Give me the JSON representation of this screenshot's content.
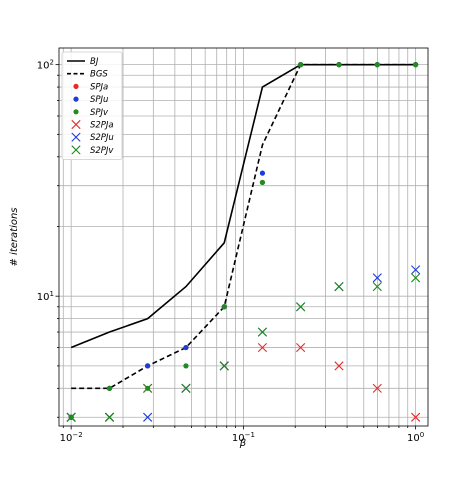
{
  "chart_data": {
    "type": "line",
    "title": "",
    "xlabel": "β",
    "ylabel": "# iterations",
    "xscale": "log",
    "yscale": "log",
    "xlim": [
      0.0085,
      1.18
    ],
    "ylim": [
      2.75,
      118
    ],
    "grid": "major and minor on both axes",
    "legend_placement": "top-left",
    "x_tick_labels": [
      {
        "value": 0.01,
        "base": "10",
        "exp": "−2"
      },
      {
        "value": 0.1,
        "base": "10",
        "exp": "−1"
      },
      {
        "value": 1,
        "base": "10",
        "exp": "0"
      }
    ],
    "y_tick_labels": [
      {
        "value": 10,
        "base": "10",
        "exp": "1"
      },
      {
        "value": 100,
        "base": "10",
        "exp": "2"
      }
    ],
    "series": [
      {
        "name": "BJ",
        "kind": "line",
        "style": "solid",
        "color": "#000000",
        "points": [
          [
            0.01,
            6
          ],
          [
            0.0167,
            7
          ],
          [
            0.0278,
            8
          ],
          [
            0.0464,
            11
          ],
          [
            0.0774,
            17
          ],
          [
            0.129,
            80
          ],
          [
            0.215,
            100
          ],
          [
            0.359,
            100
          ],
          [
            0.599,
            100
          ],
          [
            1.0,
            100
          ]
        ]
      },
      {
        "name": "BGS",
        "kind": "line",
        "style": "dashed",
        "color": "#000000",
        "points": [
          [
            0.01,
            4
          ],
          [
            0.0167,
            4
          ],
          [
            0.0278,
            5
          ],
          [
            0.0464,
            6
          ],
          [
            0.0774,
            9
          ],
          [
            0.129,
            45
          ],
          [
            0.215,
            100
          ],
          [
            0.359,
            100
          ],
          [
            0.599,
            100
          ],
          [
            1.0,
            100
          ]
        ]
      },
      {
        "name": "SPJa",
        "kind": "dot",
        "color": "#e8292a",
        "points": [
          [
            0.01,
            3
          ],
          [
            0.0167,
            4
          ],
          [
            0.0278,
            5
          ],
          [
            0.0464,
            6
          ],
          [
            0.0774,
            9
          ],
          [
            0.129,
            31
          ],
          [
            0.215,
            100
          ],
          [
            0.359,
            100
          ],
          [
            0.599,
            100
          ],
          [
            1.0,
            100
          ]
        ]
      },
      {
        "name": "SPJu",
        "kind": "dot",
        "color": "#1f3bd6",
        "points": [
          [
            0.01,
            3
          ],
          [
            0.0167,
            4
          ],
          [
            0.0278,
            5
          ],
          [
            0.0464,
            6
          ],
          [
            0.0774,
            9
          ],
          [
            0.129,
            34
          ],
          [
            0.215,
            100
          ],
          [
            0.359,
            100
          ],
          [
            0.599,
            100
          ],
          [
            1.0,
            100
          ]
        ]
      },
      {
        "name": "SPJv",
        "kind": "dot",
        "color": "#1e8c1e",
        "points": [
          [
            0.01,
            3
          ],
          [
            0.0167,
            4
          ],
          [
            0.0278,
            4
          ],
          [
            0.0464,
            5
          ],
          [
            0.0774,
            9
          ],
          [
            0.129,
            31
          ],
          [
            0.215,
            100
          ],
          [
            0.359,
            100
          ],
          [
            0.599,
            100
          ],
          [
            1.0,
            100
          ]
        ]
      },
      {
        "name": "S2PJa",
        "kind": "x",
        "color": "#e8292a",
        "points": [
          [
            0.01,
            3
          ],
          [
            0.0167,
            3
          ],
          [
            0.0278,
            4
          ],
          [
            0.0464,
            4
          ],
          [
            0.0774,
            5
          ],
          [
            0.129,
            6
          ],
          [
            0.215,
            6
          ],
          [
            0.359,
            5
          ],
          [
            0.599,
            4
          ],
          [
            1.0,
            3
          ]
        ]
      },
      {
        "name": "S2PJu",
        "kind": "x",
        "color": "#1f3bd6",
        "points": [
          [
            0.01,
            3
          ],
          [
            0.0167,
            3
          ],
          [
            0.0278,
            3
          ],
          [
            0.0464,
            4
          ],
          [
            0.0774,
            5
          ],
          [
            0.129,
            7
          ],
          [
            0.215,
            9
          ],
          [
            0.359,
            11
          ],
          [
            0.599,
            12
          ],
          [
            1.0,
            13
          ]
        ]
      },
      {
        "name": "S2PJv",
        "kind": "x",
        "color": "#1e8c1e",
        "points": [
          [
            0.01,
            3
          ],
          [
            0.0167,
            3
          ],
          [
            0.0278,
            4
          ],
          [
            0.0464,
            4
          ],
          [
            0.0774,
            5
          ],
          [
            0.129,
            7
          ],
          [
            0.215,
            9
          ],
          [
            0.359,
            11
          ],
          [
            0.599,
            11
          ],
          [
            1.0,
            12
          ]
        ]
      }
    ]
  }
}
